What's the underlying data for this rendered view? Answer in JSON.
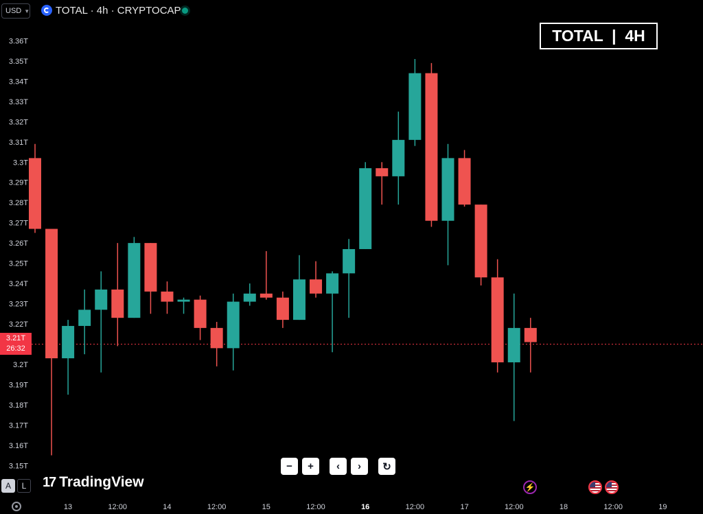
{
  "header": {
    "currency": "USD",
    "symbol_title": "TOTAL · 4h · CRYPTOCAP",
    "badge": "TOTAL  |  4H"
  },
  "price_tag": {
    "price": "3.21T",
    "countdown": "26:32"
  },
  "branding": {
    "logo_mark": "17",
    "logo_text": "TradingView"
  },
  "controls": {
    "zoom_out": "−",
    "zoom_in": "+",
    "scroll_left": "‹",
    "scroll_right": "›",
    "reset": "↻"
  },
  "modes": {
    "auto": "A",
    "log": "L"
  },
  "colors": {
    "up": "#26a69a",
    "down": "#ef5350",
    "background": "#000000",
    "last_price_line": "#f23645"
  },
  "chart_data": {
    "type": "candlestick",
    "title": "TOTAL · 4h · CRYPTOCAP",
    "ylim": [
      3.145,
      3.37
    ],
    "y_ticks": [
      "3.15T",
      "3.16T",
      "3.17T",
      "3.18T",
      "3.19T",
      "3.2T",
      "3.21T",
      "3.22T",
      "3.23T",
      "3.24T",
      "3.25T",
      "3.26T",
      "3.27T",
      "3.28T",
      "3.29T",
      "3.3T",
      "3.31T",
      "3.32T",
      "3.33T",
      "3.34T",
      "3.35T",
      "3.36T"
    ],
    "x_ticks": [
      {
        "label": "13",
        "bold": false
      },
      {
        "label": "12:00",
        "bold": false
      },
      {
        "label": "14",
        "bold": false
      },
      {
        "label": "12:00",
        "bold": false
      },
      {
        "label": "15",
        "bold": false
      },
      {
        "label": "12:00",
        "bold": false
      },
      {
        "label": "16",
        "bold": true
      },
      {
        "label": "12:00",
        "bold": false
      },
      {
        "label": "17",
        "bold": false
      },
      {
        "label": "12:00",
        "bold": false
      },
      {
        "label": "18",
        "bold": false
      },
      {
        "label": "12:00",
        "bold": false
      },
      {
        "label": "19",
        "bold": false
      }
    ],
    "last_price": 3.21,
    "candles": [
      {
        "o": 3.302,
        "h": 3.309,
        "l": 3.265,
        "c": 3.267
      },
      {
        "o": 3.267,
        "h": 3.267,
        "l": 3.155,
        "c": 3.203
      },
      {
        "o": 3.203,
        "h": 3.222,
        "l": 3.185,
        "c": 3.219
      },
      {
        "o": 3.219,
        "h": 3.237,
        "l": 3.205,
        "c": 3.227
      },
      {
        "o": 3.227,
        "h": 3.246,
        "l": 3.196,
        "c": 3.237
      },
      {
        "o": 3.237,
        "h": 3.26,
        "l": 3.209,
        "c": 3.223
      },
      {
        "o": 3.223,
        "h": 3.263,
        "l": 3.223,
        "c": 3.26
      },
      {
        "o": 3.26,
        "h": 3.26,
        "l": 3.225,
        "c": 3.236
      },
      {
        "o": 3.236,
        "h": 3.241,
        "l": 3.225,
        "c": 3.231
      },
      {
        "o": 3.231,
        "h": 3.233,
        "l": 3.225,
        "c": 3.232
      },
      {
        "o": 3.232,
        "h": 3.234,
        "l": 3.212,
        "c": 3.218
      },
      {
        "o": 3.218,
        "h": 3.221,
        "l": 3.199,
        "c": 3.208
      },
      {
        "o": 3.208,
        "h": 3.235,
        "l": 3.197,
        "c": 3.231
      },
      {
        "o": 3.231,
        "h": 3.24,
        "l": 3.229,
        "c": 3.235
      },
      {
        "o": 3.235,
        "h": 3.256,
        "l": 3.232,
        "c": 3.233
      },
      {
        "o": 3.233,
        "h": 3.236,
        "l": 3.218,
        "c": 3.222
      },
      {
        "o": 3.222,
        "h": 3.254,
        "l": 3.222,
        "c": 3.242
      },
      {
        "o": 3.242,
        "h": 3.251,
        "l": 3.233,
        "c": 3.235
      },
      {
        "o": 3.235,
        "h": 3.246,
        "l": 3.206,
        "c": 3.245
      },
      {
        "o": 3.245,
        "h": 3.262,
        "l": 3.223,
        "c": 3.257
      },
      {
        "o": 3.257,
        "h": 3.3,
        "l": 3.257,
        "c": 3.297
      },
      {
        "o": 3.297,
        "h": 3.3,
        "l": 3.279,
        "c": 3.293
      },
      {
        "o": 3.293,
        "h": 3.325,
        "l": 3.279,
        "c": 3.311
      },
      {
        "o": 3.311,
        "h": 3.351,
        "l": 3.308,
        "c": 3.344
      },
      {
        "o": 3.344,
        "h": 3.349,
        "l": 3.268,
        "c": 3.271
      },
      {
        "o": 3.271,
        "h": 3.309,
        "l": 3.249,
        "c": 3.302
      },
      {
        "o": 3.302,
        "h": 3.306,
        "l": 3.278,
        "c": 3.279
      },
      {
        "o": 3.279,
        "h": 3.279,
        "l": 3.239,
        "c": 3.243
      },
      {
        "o": 3.243,
        "h": 3.252,
        "l": 3.196,
        "c": 3.201
      },
      {
        "o": 3.201,
        "h": 3.235,
        "l": 3.172,
        "c": 3.218
      },
      {
        "o": 3.218,
        "h": 3.223,
        "l": 3.196,
        "c": 3.211
      }
    ]
  }
}
